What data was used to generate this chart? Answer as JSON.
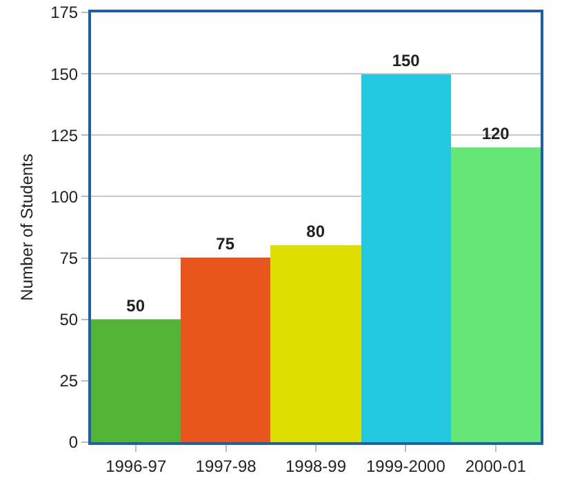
{
  "chart_data": {
    "type": "bar",
    "ylabel": "Number of Students",
    "categories": [
      "1996-97",
      "1997-98",
      "1998-99",
      "1999-2000",
      "2000-01"
    ],
    "values": [
      50,
      75,
      80,
      150,
      120
    ],
    "colors": [
      "#54b435",
      "#e8561d",
      "#dede00",
      "#22c9e1",
      "#66e677"
    ],
    "ylim": [
      0,
      175
    ],
    "yticks": [
      0,
      25,
      50,
      75,
      100,
      125,
      150,
      175
    ],
    "grid": "y",
    "data_labels": true
  }
}
